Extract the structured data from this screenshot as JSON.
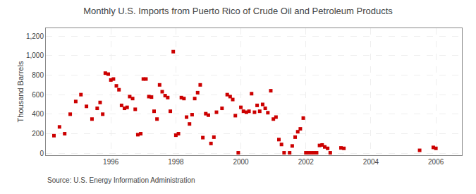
{
  "chart_data": {
    "type": "scatter",
    "title": "Monthly U.S. Imports from Puerto Rico of Crude Oil and Petroleum Products",
    "y_label": "Thousand Barrels",
    "annotations": [
      "Source: U.S. Energy Information Administration"
    ],
    "color": "#cc0000",
    "marker": "square",
    "grid": true,
    "xlim": [
      1994.0,
      2006.8
    ],
    "ylim": [
      -20,
      1280
    ],
    "xticks": [
      1996,
      1998,
      2000,
      2002,
      2004,
      2006
    ],
    "yticks": [
      0,
      200,
      400,
      600,
      800,
      {
        "value": 1000,
        "label": "1,000"
      },
      {
        "value": 1200,
        "label": "1,200"
      }
    ],
    "x": [
      1994.25,
      1994.42,
      1994.58,
      1994.75,
      1994.92,
      1995.08,
      1995.25,
      1995.42,
      1995.58,
      1995.67,
      1995.75,
      1995.83,
      1995.92,
      1996.0,
      1996.08,
      1996.17,
      1996.25,
      1996.33,
      1996.42,
      1996.5,
      1996.58,
      1996.67,
      1996.75,
      1996.83,
      1996.92,
      1997.0,
      1997.08,
      1997.17,
      1997.25,
      1997.33,
      1997.42,
      1997.5,
      1997.58,
      1997.67,
      1997.75,
      1997.83,
      1997.92,
      1998.0,
      1998.08,
      1998.17,
      1998.25,
      1998.33,
      1998.42,
      1998.5,
      1998.58,
      1998.67,
      1998.75,
      1998.83,
      1998.92,
      1999.0,
      1999.08,
      1999.17,
      1999.25,
      1999.42,
      1999.58,
      1999.67,
      1999.75,
      1999.83,
      1999.92,
      2000.0,
      2000.08,
      2000.17,
      2000.25,
      2000.33,
      2000.42,
      2000.5,
      2000.58,
      2000.67,
      2000.75,
      2000.83,
      2000.92,
      2001.0,
      2001.08,
      2001.17,
      2001.25,
      2001.33,
      2001.5,
      2001.58,
      2001.67,
      2001.75,
      2001.83,
      2001.92,
      2002.0,
      2002.08,
      2002.17,
      2002.25,
      2002.33,
      2002.42,
      2002.5,
      2002.58,
      2002.67,
      2002.75,
      2003.08,
      2003.17,
      2005.5,
      2005.92,
      2006.0
    ],
    "values": [
      180,
      270,
      200,
      400,
      530,
      600,
      480,
      350,
      460,
      520,
      400,
      820,
      810,
      750,
      760,
      690,
      650,
      490,
      460,
      470,
      580,
      560,
      450,
      190,
      200,
      760,
      760,
      580,
      575,
      430,
      350,
      700,
      630,
      590,
      570,
      430,
      1040,
      185,
      200,
      570,
      560,
      370,
      300,
      395,
      560,
      620,
      700,
      160,
      405,
      390,
      100,
      165,
      420,
      460,
      600,
      580,
      550,
      385,
      5,
      470,
      430,
      420,
      430,
      610,
      420,
      490,
      430,
      500,
      460,
      415,
      640,
      350,
      370,
      140,
      90,
      5,
      5,
      75,
      165,
      220,
      250,
      360,
      5,
      5,
      5,
      5,
      5,
      80,
      85,
      65,
      50,
      5,
      55,
      50,
      30,
      60,
      50
    ]
  }
}
